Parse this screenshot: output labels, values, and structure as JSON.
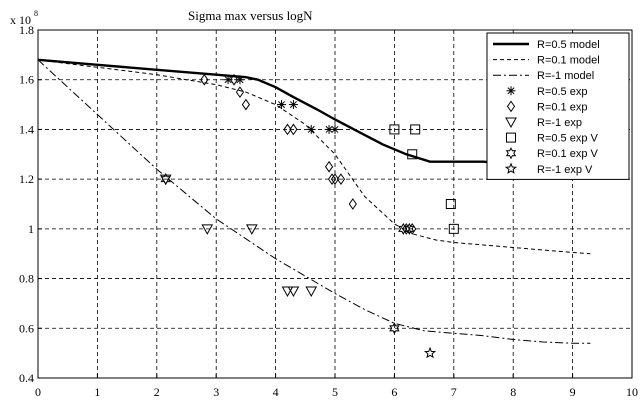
{
  "chart_data": {
    "type": "line",
    "title": "Sigma max versus logN",
    "xlabel": "",
    "ylabel": "",
    "y_multiplier": "x 10",
    "y_multiplier_exponent": "8",
    "xlim": [
      0,
      10
    ],
    "ylim": [
      0.4,
      1.8
    ],
    "xticks": [
      "0",
      "1",
      "2",
      "3",
      "4",
      "5",
      "6",
      "7",
      "8",
      "9",
      "10"
    ],
    "yticks": [
      "0.4",
      "0.6",
      "0.8",
      "1",
      "1.2",
      "1.4",
      "1.6",
      "1.8"
    ],
    "grid": true,
    "legend_position": "top-right",
    "series": [
      {
        "name": "R=0.5 model",
        "kind": "line",
        "style": "solid-thick",
        "x": [
          0,
          1,
          2,
          3,
          3.5,
          3.7,
          4.0,
          4.3,
          4.7,
          5.0,
          5.4,
          5.8,
          6.2,
          6.6,
          7.0,
          7.5,
          8.0,
          8.4,
          8.7,
          9.3
        ],
        "y": [
          1.68,
          1.66,
          1.64,
          1.62,
          1.61,
          1.6,
          1.57,
          1.53,
          1.48,
          1.44,
          1.39,
          1.34,
          1.3,
          1.27,
          1.27,
          1.27,
          1.26,
          1.26,
          1.26,
          1.26
        ]
      },
      {
        "name": "R=0.1 model",
        "kind": "line",
        "style": "dashed",
        "x": [
          0,
          0.5,
          1,
          1.5,
          2,
          2.5,
          3.0,
          3.5,
          4.0,
          4.5,
          5.0,
          5.5,
          6.0,
          6.3,
          6.7,
          7.0,
          7.5,
          8.0,
          8.5,
          9.0,
          9.3
        ],
        "y": [
          1.68,
          1.665,
          1.65,
          1.635,
          1.62,
          1.6,
          1.58,
          1.55,
          1.5,
          1.42,
          1.3,
          1.13,
          1.02,
          0.98,
          0.955,
          0.945,
          0.935,
          0.925,
          0.915,
          0.905,
          0.9
        ]
      },
      {
        "name": "R=-1 model",
        "kind": "line",
        "style": "dashdot",
        "x": [
          0,
          0.5,
          1,
          1.5,
          2,
          2.5,
          3.0,
          3.5,
          4.0,
          4.5,
          5.0,
          5.5,
          6.0,
          6.5,
          7.0,
          7.5,
          8.0,
          8.5,
          9.0,
          9.3
        ],
        "y": [
          1.68,
          1.57,
          1.46,
          1.35,
          1.24,
          1.14,
          1.04,
          0.96,
          0.88,
          0.81,
          0.74,
          0.675,
          0.62,
          0.59,
          0.58,
          0.57,
          0.555,
          0.545,
          0.54,
          0.54
        ]
      },
      {
        "name": "R=0.5 exp",
        "kind": "scatter",
        "marker": "asterisk",
        "x": [
          3.2,
          3.4,
          4.1,
          4.3,
          4.6,
          4.9,
          5.0
        ],
        "y": [
          1.6,
          1.6,
          1.5,
          1.5,
          1.4,
          1.4,
          1.4
        ]
      },
      {
        "name": "R=0.1 exp",
        "kind": "scatter",
        "marker": "diamond",
        "x": [
          2.8,
          3.3,
          3.4,
          3.5,
          4.2,
          4.3,
          4.9,
          4.95,
          5.0,
          5.1,
          5.3,
          6.2,
          6.3
        ],
        "y": [
          1.6,
          1.6,
          1.55,
          1.5,
          1.4,
          1.4,
          1.25,
          1.2,
          1.2,
          1.2,
          1.1,
          1.0,
          1.0
        ]
      },
      {
        "name": "R=-1 exp",
        "kind": "scatter",
        "marker": "triangle-down",
        "x": [
          2.15,
          2.85,
          3.6,
          4.2,
          4.3,
          4.6
        ],
        "y": [
          1.2,
          1.0,
          1.0,
          0.75,
          0.75,
          0.75
        ]
      },
      {
        "name": "R=0.5 exp V",
        "kind": "scatter",
        "marker": "square",
        "x": [
          6.0,
          6.35,
          6.3,
          6.95,
          7.0
        ],
        "y": [
          1.4,
          1.4,
          1.3,
          1.1,
          1.0
        ]
      },
      {
        "name": "R=0.1 exp V",
        "kind": "scatter",
        "marker": "hexagram",
        "x": [
          2.15,
          6.15,
          6.25,
          6.0
        ],
        "y": [
          1.2,
          1.0,
          1.0,
          0.6
        ]
      },
      {
        "name": "R=-1 exp V",
        "kind": "scatter",
        "marker": "pentagram",
        "x": [
          6.6
        ],
        "y": [
          0.5
        ]
      }
    ]
  }
}
